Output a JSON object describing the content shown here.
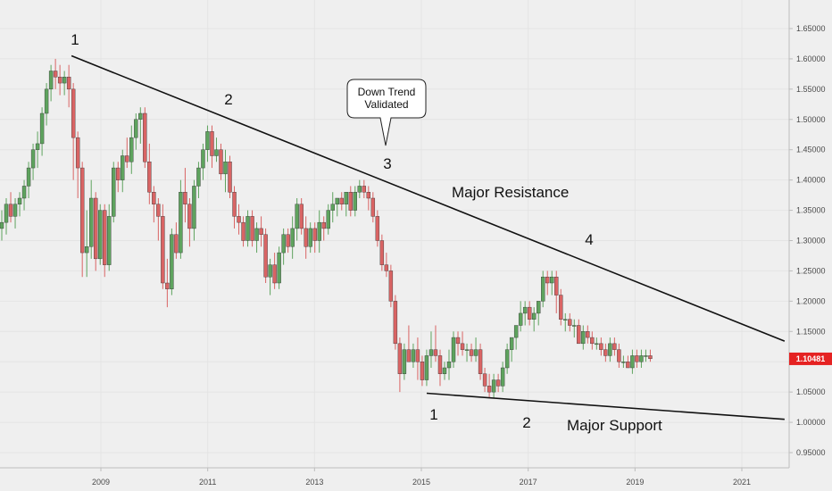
{
  "chart_data": {
    "type": "candlestick",
    "title": "",
    "xlabel": "",
    "ylabel": "",
    "ylim": [
      0.92,
      1.7
    ],
    "xlim": [
      2007.0,
      2021.8
    ],
    "y_ticks": [
      "1.65000",
      "1.60000",
      "1.55000",
      "1.50000",
      "1.45000",
      "1.40000",
      "1.35000",
      "1.30000",
      "1.25000",
      "1.20000",
      "1.15000",
      "1.10000",
      "1.05000",
      "1.00000",
      "0.95000"
    ],
    "x_ticks": [
      "2009",
      "2011",
      "2013",
      "2015",
      "2017",
      "2019",
      "2021"
    ],
    "last_price": "1.10481",
    "colors": {
      "up": "#5ea35e",
      "down": "#d96464",
      "line": "#111111",
      "price_tag": "#e52222",
      "grid": "#e4e4e4"
    },
    "series": [
      {
        "values": [
          [
            1.32,
            1.35,
            1.3,
            1.33
          ],
          [
            1.33,
            1.37,
            1.31,
            1.36
          ],
          [
            1.36,
            1.38,
            1.33,
            1.34
          ],
          [
            1.34,
            1.37,
            1.32,
            1.36
          ],
          [
            1.36,
            1.38,
            1.34,
            1.37
          ],
          [
            1.37,
            1.4,
            1.35,
            1.39
          ],
          [
            1.39,
            1.43,
            1.37,
            1.42
          ],
          [
            1.42,
            1.46,
            1.4,
            1.45
          ],
          [
            1.45,
            1.48,
            1.42,
            1.46
          ],
          [
            1.46,
            1.52,
            1.44,
            1.51
          ],
          [
            1.51,
            1.56,
            1.49,
            1.55
          ],
          [
            1.55,
            1.59,
            1.53,
            1.58
          ],
          [
            1.58,
            1.6,
            1.55,
            1.57
          ],
          [
            1.57,
            1.59,
            1.54,
            1.56
          ],
          [
            1.56,
            1.58,
            1.54,
            1.57
          ],
          [
            1.57,
            1.59,
            1.52,
            1.55
          ],
          [
            1.55,
            1.56,
            1.4,
            1.47
          ],
          [
            1.47,
            1.48,
            1.37,
            1.42
          ],
          [
            1.42,
            1.43,
            1.24,
            1.28
          ],
          [
            1.28,
            1.35,
            1.24,
            1.29
          ],
          [
            1.29,
            1.4,
            1.27,
            1.37
          ],
          [
            1.37,
            1.38,
            1.25,
            1.27
          ],
          [
            1.27,
            1.36,
            1.26,
            1.35
          ],
          [
            1.35,
            1.36,
            1.24,
            1.26
          ],
          [
            1.26,
            1.36,
            1.25,
            1.34
          ],
          [
            1.34,
            1.43,
            1.33,
            1.42
          ],
          [
            1.42,
            1.43,
            1.38,
            1.4
          ],
          [
            1.4,
            1.45,
            1.38,
            1.44
          ],
          [
            1.44,
            1.47,
            1.42,
            1.43
          ],
          [
            1.43,
            1.49,
            1.41,
            1.47
          ],
          [
            1.47,
            1.51,
            1.45,
            1.5
          ],
          [
            1.5,
            1.52,
            1.46,
            1.51
          ],
          [
            1.51,
            1.52,
            1.42,
            1.43
          ],
          [
            1.43,
            1.46,
            1.36,
            1.38
          ],
          [
            1.38,
            1.39,
            1.33,
            1.36
          ],
          [
            1.36,
            1.37,
            1.3,
            1.34
          ],
          [
            1.34,
            1.36,
            1.22,
            1.23
          ],
          [
            1.23,
            1.27,
            1.19,
            1.22
          ],
          [
            1.22,
            1.32,
            1.21,
            1.31
          ],
          [
            1.31,
            1.33,
            1.27,
            1.28
          ],
          [
            1.28,
            1.4,
            1.27,
            1.38
          ],
          [
            1.38,
            1.42,
            1.33,
            1.36
          ],
          [
            1.36,
            1.37,
            1.29,
            1.32
          ],
          [
            1.32,
            1.4,
            1.3,
            1.39
          ],
          [
            1.39,
            1.43,
            1.37,
            1.42
          ],
          [
            1.42,
            1.46,
            1.4,
            1.45
          ],
          [
            1.45,
            1.49,
            1.43,
            1.48
          ],
          [
            1.48,
            1.49,
            1.42,
            1.44
          ],
          [
            1.44,
            1.47,
            1.43,
            1.45
          ],
          [
            1.45,
            1.46,
            1.4,
            1.41
          ],
          [
            1.41,
            1.45,
            1.38,
            1.43
          ],
          [
            1.43,
            1.44,
            1.37,
            1.38
          ],
          [
            1.38,
            1.39,
            1.32,
            1.34
          ],
          [
            1.34,
            1.36,
            1.31,
            1.33
          ],
          [
            1.33,
            1.34,
            1.29,
            1.3
          ],
          [
            1.3,
            1.35,
            1.29,
            1.34
          ],
          [
            1.34,
            1.35,
            1.29,
            1.3
          ],
          [
            1.3,
            1.33,
            1.28,
            1.32
          ],
          [
            1.32,
            1.34,
            1.29,
            1.31
          ],
          [
            1.31,
            1.32,
            1.23,
            1.24
          ],
          [
            1.24,
            1.27,
            1.21,
            1.26
          ],
          [
            1.26,
            1.28,
            1.22,
            1.23
          ],
          [
            1.23,
            1.29,
            1.22,
            1.28
          ],
          [
            1.28,
            1.32,
            1.26,
            1.31
          ],
          [
            1.31,
            1.32,
            1.28,
            1.29
          ],
          [
            1.29,
            1.34,
            1.27,
            1.32
          ],
          [
            1.32,
            1.37,
            1.3,
            1.36
          ],
          [
            1.36,
            1.37,
            1.31,
            1.32
          ],
          [
            1.32,
            1.34,
            1.27,
            1.29
          ],
          [
            1.29,
            1.33,
            1.28,
            1.32
          ],
          [
            1.32,
            1.33,
            1.28,
            1.3
          ],
          [
            1.3,
            1.35,
            1.28,
            1.33
          ],
          [
            1.33,
            1.34,
            1.3,
            1.32
          ],
          [
            1.32,
            1.36,
            1.31,
            1.35
          ],
          [
            1.35,
            1.38,
            1.33,
            1.36
          ],
          [
            1.36,
            1.37,
            1.34,
            1.37
          ],
          [
            1.37,
            1.38,
            1.35,
            1.36
          ],
          [
            1.36,
            1.38,
            1.34,
            1.38
          ],
          [
            1.38,
            1.39,
            1.34,
            1.35
          ],
          [
            1.35,
            1.39,
            1.34,
            1.38
          ],
          [
            1.38,
            1.4,
            1.37,
            1.39
          ],
          [
            1.39,
            1.4,
            1.37,
            1.38
          ],
          [
            1.38,
            1.39,
            1.35,
            1.37
          ],
          [
            1.37,
            1.38,
            1.33,
            1.34
          ],
          [
            1.34,
            1.35,
            1.29,
            1.3
          ],
          [
            1.3,
            1.31,
            1.25,
            1.26
          ],
          [
            1.26,
            1.28,
            1.24,
            1.25
          ],
          [
            1.25,
            1.26,
            1.19,
            1.2
          ],
          [
            1.2,
            1.21,
            1.12,
            1.13
          ],
          [
            1.13,
            1.14,
            1.05,
            1.08
          ],
          [
            1.08,
            1.13,
            1.07,
            1.12
          ],
          [
            1.12,
            1.16,
            1.1,
            1.1
          ],
          [
            1.1,
            1.13,
            1.09,
            1.12
          ],
          [
            1.12,
            1.14,
            1.07,
            1.1
          ],
          [
            1.1,
            1.11,
            1.06,
            1.07
          ],
          [
            1.07,
            1.12,
            1.06,
            1.11
          ],
          [
            1.11,
            1.15,
            1.09,
            1.12
          ],
          [
            1.12,
            1.16,
            1.1,
            1.11
          ],
          [
            1.11,
            1.12,
            1.06,
            1.08
          ],
          [
            1.08,
            1.1,
            1.07,
            1.09
          ],
          [
            1.09,
            1.12,
            1.07,
            1.1
          ],
          [
            1.1,
            1.15,
            1.09,
            1.14
          ],
          [
            1.14,
            1.15,
            1.11,
            1.13
          ],
          [
            1.13,
            1.15,
            1.11,
            1.12
          ],
          [
            1.12,
            1.13,
            1.1,
            1.12
          ],
          [
            1.12,
            1.13,
            1.1,
            1.11
          ],
          [
            1.11,
            1.14,
            1.1,
            1.12
          ],
          [
            1.12,
            1.13,
            1.07,
            1.08
          ],
          [
            1.08,
            1.09,
            1.05,
            1.06
          ],
          [
            1.06,
            1.08,
            1.04,
            1.05
          ],
          [
            1.05,
            1.08,
            1.04,
            1.07
          ],
          [
            1.07,
            1.08,
            1.05,
            1.06
          ],
          [
            1.06,
            1.1,
            1.05,
            1.09
          ],
          [
            1.09,
            1.13,
            1.08,
            1.12
          ],
          [
            1.12,
            1.14,
            1.1,
            1.14
          ],
          [
            1.14,
            1.16,
            1.12,
            1.16
          ],
          [
            1.16,
            1.2,
            1.15,
            1.18
          ],
          [
            1.18,
            1.2,
            1.16,
            1.19
          ],
          [
            1.19,
            1.2,
            1.16,
            1.17
          ],
          [
            1.17,
            1.19,
            1.15,
            1.18
          ],
          [
            1.18,
            1.2,
            1.16,
            1.2
          ],
          [
            1.2,
            1.25,
            1.19,
            1.24
          ],
          [
            1.24,
            1.25,
            1.21,
            1.23
          ],
          [
            1.23,
            1.25,
            1.21,
            1.24
          ],
          [
            1.24,
            1.25,
            1.18,
            1.21
          ],
          [
            1.21,
            1.22,
            1.16,
            1.17
          ],
          [
            1.17,
            1.18,
            1.15,
            1.17
          ],
          [
            1.17,
            1.18,
            1.15,
            1.16
          ],
          [
            1.16,
            1.17,
            1.14,
            1.16
          ],
          [
            1.16,
            1.17,
            1.13,
            1.13
          ],
          [
            1.13,
            1.16,
            1.12,
            1.15
          ],
          [
            1.15,
            1.16,
            1.13,
            1.14
          ],
          [
            1.14,
            1.15,
            1.12,
            1.13
          ],
          [
            1.13,
            1.14,
            1.12,
            1.13
          ],
          [
            1.13,
            1.14,
            1.11,
            1.12
          ],
          [
            1.12,
            1.13,
            1.1,
            1.11
          ],
          [
            1.11,
            1.14,
            1.1,
            1.13
          ],
          [
            1.13,
            1.14,
            1.11,
            1.12
          ],
          [
            1.12,
            1.13,
            1.09,
            1.1
          ],
          [
            1.1,
            1.11,
            1.09,
            1.1
          ],
          [
            1.1,
            1.11,
            1.09,
            1.09
          ],
          [
            1.09,
            1.12,
            1.08,
            1.11
          ],
          [
            1.11,
            1.12,
            1.09,
            1.1
          ],
          [
            1.1,
            1.12,
            1.09,
            1.11
          ],
          [
            1.11,
            1.12,
            1.1,
            1.11
          ],
          [
            1.11,
            1.12,
            1.1,
            1.105
          ]
        ]
      }
    ],
    "trend_lines": [
      {
        "name": "Major Resistance",
        "from": [
          2008.45,
          1.605
        ],
        "to": [
          2021.8,
          1.134
        ]
      },
      {
        "name": "Major Support",
        "from": [
          2015.1,
          1.048
        ],
        "to": [
          2021.8,
          1.005
        ]
      }
    ],
    "annotations": {
      "wave_top_1": "1",
      "wave_top_2": "2",
      "wave_top_3": "3",
      "wave_top_4": "4",
      "wave_bottom_1": "1",
      "wave_bottom_2": "2",
      "resistance_label": "Major Resistance",
      "support_label": "Major Support",
      "callout_line1": "Down Trend",
      "callout_line2": "Validated"
    }
  }
}
